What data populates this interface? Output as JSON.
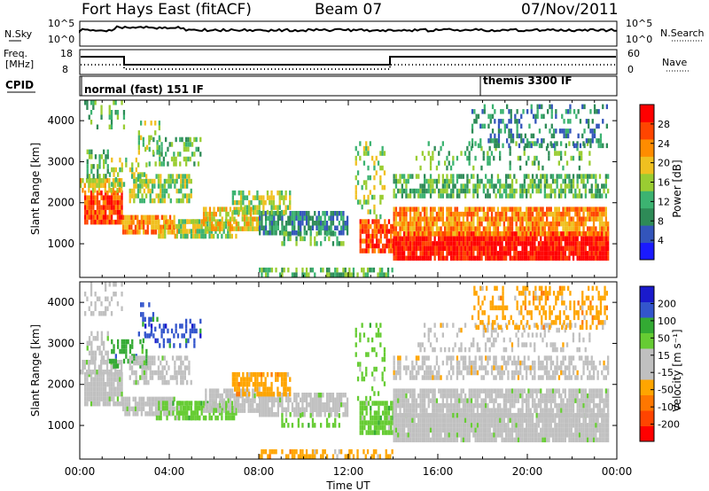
{
  "header": {
    "station": "Fort Hays East (fitACF)",
    "beam": "Beam 07",
    "date": "07/Nov/2011"
  },
  "top_panels": {
    "nsky_label": "N.Sky",
    "nsearch_label": "N.Search",
    "noise_ticks_left": [
      "10^5",
      "10^0"
    ],
    "noise_ticks_right": [
      "10^5",
      "10^0"
    ],
    "freq_label_1": "Freq.",
    "freq_label_2": "[MHz]",
    "freq_ticks": [
      "18",
      "8"
    ],
    "nave_label": "Nave",
    "nave_ticks": [
      "60",
      "0"
    ],
    "cpid_label": "CPID",
    "cpid_mode_1": "normal (fast) 151 IF",
    "cpid_mode_2": "themis 3300 IF"
  },
  "colors": {
    "power_scale": [
      "#1a1aff",
      "#3355bb",
      "#2e8b57",
      "#3cb371",
      "#9acd32",
      "#f0c020",
      "#ff8c00",
      "#ff4500",
      "#ff0000"
    ],
    "velocity_scale": [
      "#1a1acc",
      "#3355cc",
      "#33aa33",
      "#66cc33",
      "#c0c0c0",
      "#c0c0c0",
      "#ffa500",
      "#ff7700",
      "#ff4400",
      "#ff0000"
    ]
  },
  "chart_data": [
    {
      "type": "heatmap",
      "name": "power",
      "ylabel": "Slant Range [km]",
      "xlabel": "Time UT",
      "x_ticks": [
        "00:00",
        "04:00",
        "08:00",
        "12:00",
        "16:00",
        "20:00",
        "00:00"
      ],
      "xlim_hours": [
        0,
        24
      ],
      "y_ticks": [
        "1000",
        "2000",
        "3000",
        "4000"
      ],
      "ylim_km": [
        180,
        4500
      ],
      "colorbar_label": "Power [dB]",
      "colorbar_ticks": [
        "4",
        "8",
        "12",
        "16",
        "20",
        "24",
        "28"
      ],
      "clim": [
        0,
        30
      ]
    },
    {
      "type": "heatmap",
      "name": "velocity",
      "ylabel": "Slant Range [km]",
      "xlabel": "Time UT",
      "x_ticks": [
        "00:00",
        "04:00",
        "08:00",
        "12:00",
        "16:00",
        "20:00",
        "00:00"
      ],
      "xlim_hours": [
        0,
        24
      ],
      "y_ticks": [
        "1000",
        "2000",
        "3000",
        "4000"
      ],
      "ylim_km": [
        180,
        4500
      ],
      "colorbar_label": "Velocity [m s⁻¹]",
      "colorbar_ticks": [
        "200",
        "100",
        "50",
        "15",
        "-15",
        "-50",
        "-100",
        "-200"
      ],
      "clim": [
        -250,
        250
      ]
    }
  ],
  "x_axis_title": "Time UT"
}
